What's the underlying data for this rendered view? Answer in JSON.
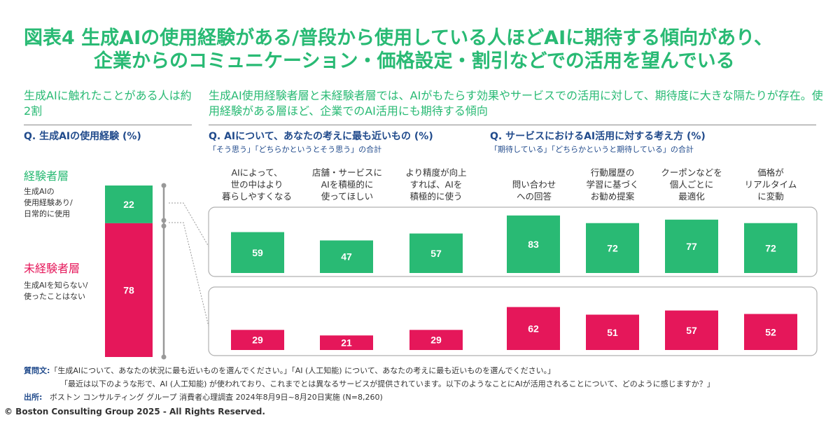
{
  "title": {
    "line1": "図表4 生成AIの使用経験がある/普段から使用している人ほどAIに期待する傾向があり、",
    "line2": "企業からのコミュニケーション・価格設定・割引などでの活用を望んでいる"
  },
  "left_subtitle": "生成AIに触れたことがある人は約2割",
  "right_subtitle": "生成AI使用経験者層と未経験者層では、AIがもたらす効果やサービスでの活用に対して、期待度に大きな隔たりが存在。使用経験がある層ほど、企業でのAI活用にも期待する傾向",
  "q_left": "Q. 生成AIの使用経験 (%)",
  "q_mid": "Q. AIについて、あなたの考えに最も近いもの (%)",
  "q_mid_sub": "「そう思う」「どちらかというとそう思う」の合計",
  "q_right": "Q. サービスにおけるAI活用に対する考え方 (%)",
  "q_right_sub": "「期待している」「どちらかというと期待している」の合計",
  "groups": {
    "experienced": {
      "label": "経験者層",
      "desc": "生成AIの\n使用経験あり/\n日常的に使用"
    },
    "inexperienced": {
      "label": "未経験者層",
      "desc": "生成AIを知らない/\n使ったことはない"
    }
  },
  "footer": {
    "q_label": "質問文:",
    "q_line1": "「生成AIについて、あなたの状況に最も近いものを選んでください。」「AI (人工知能) について、あなたの考えに最も近いものを選んでください。」",
    "q_line2": "「最近は以下のような形で、AI (人工知能) が使われており、これまでとは異なるサービスが提供されています。以下のようなことにAIが活用されることについて、どのように感じますか？」",
    "src_label": "出所:",
    "src_text": "ボストン コンサルティング グループ 消費者心理調査 2024年8月9日~8月20日実施 (N=8,260)"
  },
  "copyright": "© Boston Consulting Group 2025 - All Rights Reserved.",
  "colors": {
    "green": "#29ba74",
    "pink": "#e5175a",
    "navy": "#214b8c",
    "panel_border": "#b0b0b0"
  },
  "chart_data": [
    {
      "type": "bar",
      "stacked": true,
      "title": "Q. 生成AIの使用経験 (%)",
      "categories": [
        "生成AIの使用経験"
      ],
      "series": [
        {
          "name": "経験者層",
          "values": [
            22
          ]
        },
        {
          "name": "未経験者層",
          "values": [
            78
          ]
        }
      ],
      "ylim": [
        0,
        100
      ]
    },
    {
      "type": "bar",
      "title": "Q. AIについて、あなたの考えに最も近いもの (%)",
      "categories": [
        "AIによって、\n世の中はより\n暮らしやすくなる",
        "店舗・サービスに\nAIを積極的に\n使ってほしい",
        "より精度が向上\nすれば、AIを\n積極的に使う"
      ],
      "series": [
        {
          "name": "経験者層",
          "values": [
            59,
            47,
            57
          ]
        },
        {
          "name": "未経験者層",
          "values": [
            29,
            21,
            29
          ]
        }
      ],
      "ylim": [
        0,
        100
      ]
    },
    {
      "type": "bar",
      "title": "Q. サービスにおけるAI活用に対する考え方 (%)",
      "categories": [
        "問い合わせ\nへの回答",
        "行動履歴の\n学習に基づく\nお勧め提案",
        "クーポンなどを\n個人ごとに\n最適化",
        "価格が\nリアルタイム\nに変動"
      ],
      "series": [
        {
          "name": "経験者層",
          "values": [
            83,
            72,
            77,
            72
          ]
        },
        {
          "name": "未経験者層",
          "values": [
            62,
            51,
            57,
            52
          ]
        }
      ],
      "ylim": [
        0,
        100
      ]
    }
  ]
}
